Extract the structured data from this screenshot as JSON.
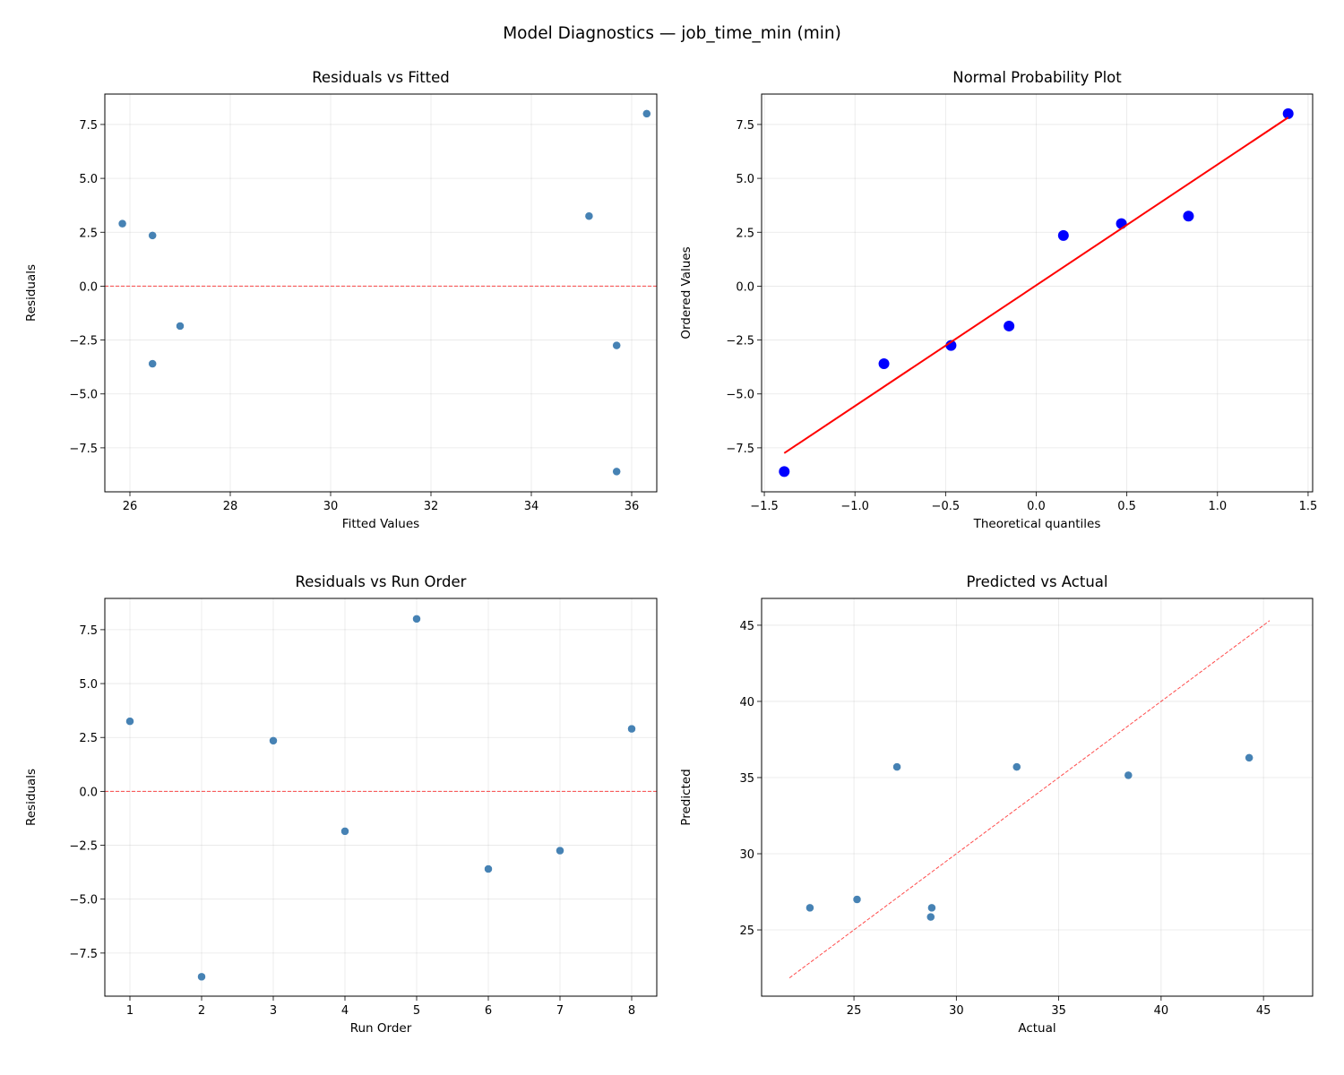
{
  "suptitle": "Model Diagnostics — job_time_min (min)",
  "colors": {
    "point": "#4682b4",
    "qq_point": "#0000ff",
    "qq_line": "#ff0000",
    "ref_line": "#ff0000"
  },
  "chart_data": [
    {
      "type": "scatter",
      "title": "Residuals vs Fitted",
      "xlabel": "Fitted Values",
      "ylabel": "Residuals",
      "xlim": [
        25.5,
        36.5
      ],
      "ylim": [
        -9.54,
        8.91
      ],
      "xticks": [
        26,
        28,
        30,
        32,
        34,
        36
      ],
      "yticks": [
        -7.5,
        -5.0,
        -2.5,
        0.0,
        2.5,
        5.0,
        7.5
      ],
      "grid": true,
      "x": [
        35.15,
        35.7,
        26.45,
        27.0,
        36.3,
        26.45,
        35.7,
        25.85
      ],
      "y": [
        3.25,
        -8.6,
        2.35,
        -1.85,
        8.0,
        -3.6,
        -2.75,
        2.9
      ],
      "reference": {
        "kind": "horizontal",
        "y": 0,
        "style": "dashed"
      }
    },
    {
      "type": "scatter",
      "title": "Normal Probability Plot",
      "xlabel": "Theoretical quantiles",
      "ylabel": "Ordered Values",
      "xlim": [
        -1.515,
        1.525
      ],
      "ylim": [
        -9.54,
        8.91
      ],
      "xticks": [
        -1.5,
        -1.0,
        -0.5,
        0.0,
        0.5,
        1.0,
        1.5
      ],
      "yticks": [
        -7.5,
        -5.0,
        -2.5,
        0.0,
        2.5,
        5.0,
        7.5
      ],
      "grid": true,
      "x": [
        -1.39,
        -0.84,
        -0.47,
        -0.15,
        0.15,
        0.47,
        0.84,
        1.39
      ],
      "y": [
        -8.6,
        -3.6,
        -2.75,
        -1.85,
        2.35,
        2.9,
        3.25,
        8.0
      ],
      "fit_line": {
        "slope": 5.6,
        "intercept": 0.04,
        "x_range": [
          -1.39,
          1.39
        ]
      }
    },
    {
      "type": "scatter",
      "title": "Residuals vs Run Order",
      "xlabel": "Run Order",
      "ylabel": "Residuals",
      "xlim": [
        0.65,
        8.35
      ],
      "ylim": [
        -9.5,
        8.95
      ],
      "xticks": [
        1,
        2,
        3,
        4,
        5,
        6,
        7,
        8
      ],
      "yticks": [
        -7.5,
        -5.0,
        -2.5,
        0.0,
        2.5,
        5.0,
        7.5
      ],
      "grid": true,
      "x": [
        1,
        2,
        3,
        4,
        5,
        6,
        7,
        8
      ],
      "y": [
        3.25,
        -8.6,
        2.35,
        -1.85,
        8.0,
        -3.6,
        -2.75,
        2.9
      ],
      "reference": {
        "kind": "horizontal",
        "y": 0,
        "style": "dashed"
      }
    },
    {
      "type": "scatter",
      "title": "Predicted vs Actual",
      "xlabel": "Actual",
      "ylabel": "Predicted",
      "xlim": [
        20.49,
        47.4
      ],
      "ylim": [
        20.65,
        46.76
      ],
      "xticks": [
        25,
        30,
        35,
        40,
        45
      ],
      "yticks": [
        25,
        30,
        35,
        40,
        45
      ],
      "grid": true,
      "x": [
        38.4,
        27.1,
        28.8,
        25.15,
        44.3,
        22.85,
        32.95,
        28.75
      ],
      "y": [
        35.15,
        35.7,
        26.45,
        27.0,
        36.3,
        26.45,
        35.7,
        25.85
      ],
      "reference": {
        "kind": "identity",
        "range": [
          21.85,
          45.3
        ],
        "style": "dashed"
      }
    }
  ]
}
